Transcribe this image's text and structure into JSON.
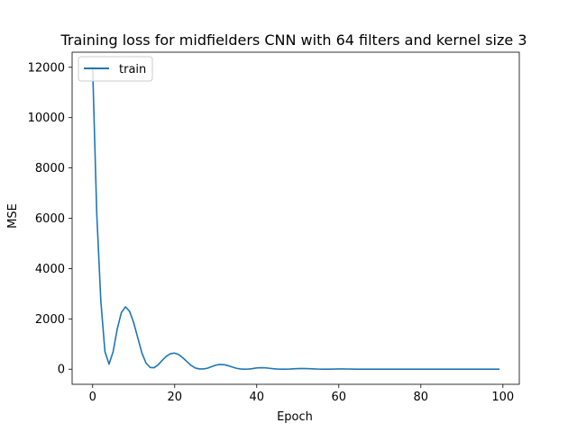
{
  "chart_data": {
    "type": "line",
    "title": "Training loss for midfielders CNN with 64 filters and kernel size 3",
    "xlabel": "Epoch",
    "ylabel": "MSE",
    "xlim": [
      -5,
      104
    ],
    "ylim": [
      -600,
      12600
    ],
    "xticks": [
      0,
      20,
      40,
      60,
      80,
      100
    ],
    "yticks": [
      0,
      2000,
      4000,
      6000,
      8000,
      10000,
      12000
    ],
    "grid": false,
    "legend": {
      "position": "upper left",
      "entries": [
        "train"
      ]
    },
    "series": [
      {
        "name": "train",
        "color": "#1f77b4",
        "x": [
          0,
          1,
          2,
          3,
          4,
          5,
          6,
          7,
          8,
          9,
          10,
          11,
          12,
          13,
          14,
          15,
          16,
          17,
          18,
          19,
          20,
          21,
          22,
          23,
          24,
          25,
          26,
          27,
          28,
          29,
          30,
          31,
          32,
          33,
          34,
          35,
          36,
          37,
          38,
          39,
          40,
          41,
          42,
          43,
          44,
          45,
          46,
          47,
          48,
          49,
          50,
          51,
          52,
          53,
          54,
          55,
          56,
          57,
          58,
          59,
          60,
          61,
          62,
          63,
          64,
          65,
          66,
          67,
          68,
          69,
          70,
          71,
          72,
          73,
          74,
          75,
          76,
          77,
          78,
          79,
          80,
          81,
          82,
          83,
          84,
          85,
          86,
          87,
          88,
          89,
          90,
          91,
          92,
          93,
          94,
          95,
          96,
          97,
          98,
          99
        ],
        "y": [
          12000,
          6200,
          2700,
          700,
          200,
          700,
          1600,
          2250,
          2480,
          2300,
          1850,
          1250,
          650,
          250,
          70,
          60,
          180,
          360,
          520,
          620,
          640,
          580,
          450,
          300,
          150,
          50,
          10,
          10,
          40,
          100,
          160,
          190,
          180,
          140,
          90,
          40,
          10,
          0,
          5,
          25,
          50,
          60,
          55,
          40,
          20,
          5,
          0,
          0,
          5,
          15,
          25,
          28,
          25,
          18,
          10,
          4,
          0,
          0,
          2,
          6,
          10,
          10,
          8,
          5,
          2,
          0,
          0,
          0,
          1,
          2,
          3,
          3,
          2,
          1,
          0,
          0,
          0,
          0,
          0,
          1,
          1,
          1,
          0,
          0,
          0,
          0,
          0,
          0,
          0,
          0,
          0,
          0,
          0,
          0,
          0,
          0,
          0,
          0,
          0,
          0
        ]
      }
    ]
  }
}
